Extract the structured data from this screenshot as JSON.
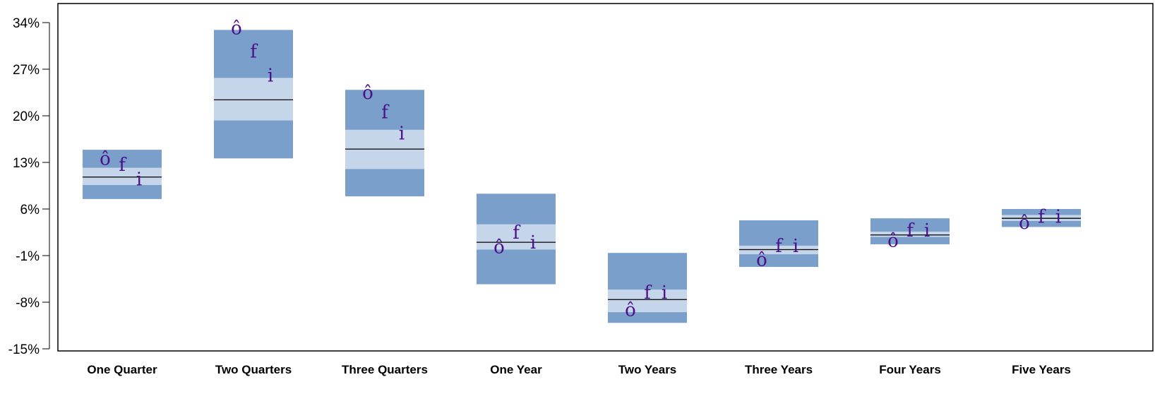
{
  "chart_data": {
    "type": "box-range",
    "ylim": [
      -15,
      36
    ],
    "y_ticks": [
      34,
      27,
      20,
      13,
      6,
      -1,
      -8,
      -15
    ],
    "y_tick_labels": [
      "34%",
      "27%",
      "20%",
      "13%",
      "6%",
      "-1%",
      "-8%",
      "-15%"
    ],
    "y_unit": "%",
    "grid": false,
    "colors": {
      "outer_band": "#7a9fcb",
      "inner_band": "#c6d6ea",
      "median": "#000000",
      "marker": "#4b0f8a"
    },
    "marker_symbols": [
      "ô",
      "f",
      "i"
    ],
    "categories": [
      "One Quarter",
      "Two Quarters",
      "Three Quarters",
      "One Year",
      "Two Years",
      "Three Years",
      "Four Years",
      "Five Years"
    ],
    "series": [
      {
        "category": "One Quarter",
        "low": 7.5,
        "inner_low": 9.6,
        "median": 10.8,
        "inner_high": 12.2,
        "high": 14.9,
        "markers": [
          13.5,
          12.6,
          10.4
        ]
      },
      {
        "category": "Two Quarters",
        "low": 13.6,
        "inner_low": 19.3,
        "median": 22.4,
        "inner_high": 25.7,
        "high": 32.9,
        "markers": [
          33.1,
          29.6,
          26.0
        ]
      },
      {
        "category": "Three Quarters",
        "low": 7.9,
        "inner_low": 12.0,
        "median": 15.0,
        "inner_high": 17.9,
        "high": 23.9,
        "markers": [
          23.4,
          20.5,
          17.3
        ]
      },
      {
        "category": "One Year",
        "low": -5.3,
        "inner_low": -0.1,
        "median": 1.0,
        "inner_high": 3.7,
        "high": 8.3,
        "markers": [
          0.2,
          2.4,
          0.9
        ]
      },
      {
        "category": "Two Years",
        "low": -11.1,
        "inner_low": -9.5,
        "median": -7.6,
        "inner_high": -6.1,
        "high": -0.6,
        "markers": [
          -9.2,
          -6.6,
          -6.6
        ]
      },
      {
        "category": "Three Years",
        "low": -2.7,
        "inner_low": -0.8,
        "median": -0.1,
        "inner_high": 0.5,
        "high": 4.3,
        "markers": [
          -1.7,
          0.4,
          0.4
        ]
      },
      {
        "category": "Four Years",
        "low": 0.7,
        "inner_low": 1.8,
        "median": 2.1,
        "inner_high": 2.6,
        "high": 4.6,
        "markers": [
          1.2,
          2.7,
          2.7
        ]
      },
      {
        "category": "Five Years",
        "low": 3.3,
        "inner_low": 4.2,
        "median": 4.6,
        "inner_high": 5.1,
        "high": 6.0,
        "markers": [
          3.9,
          4.8,
          4.8
        ]
      }
    ]
  }
}
